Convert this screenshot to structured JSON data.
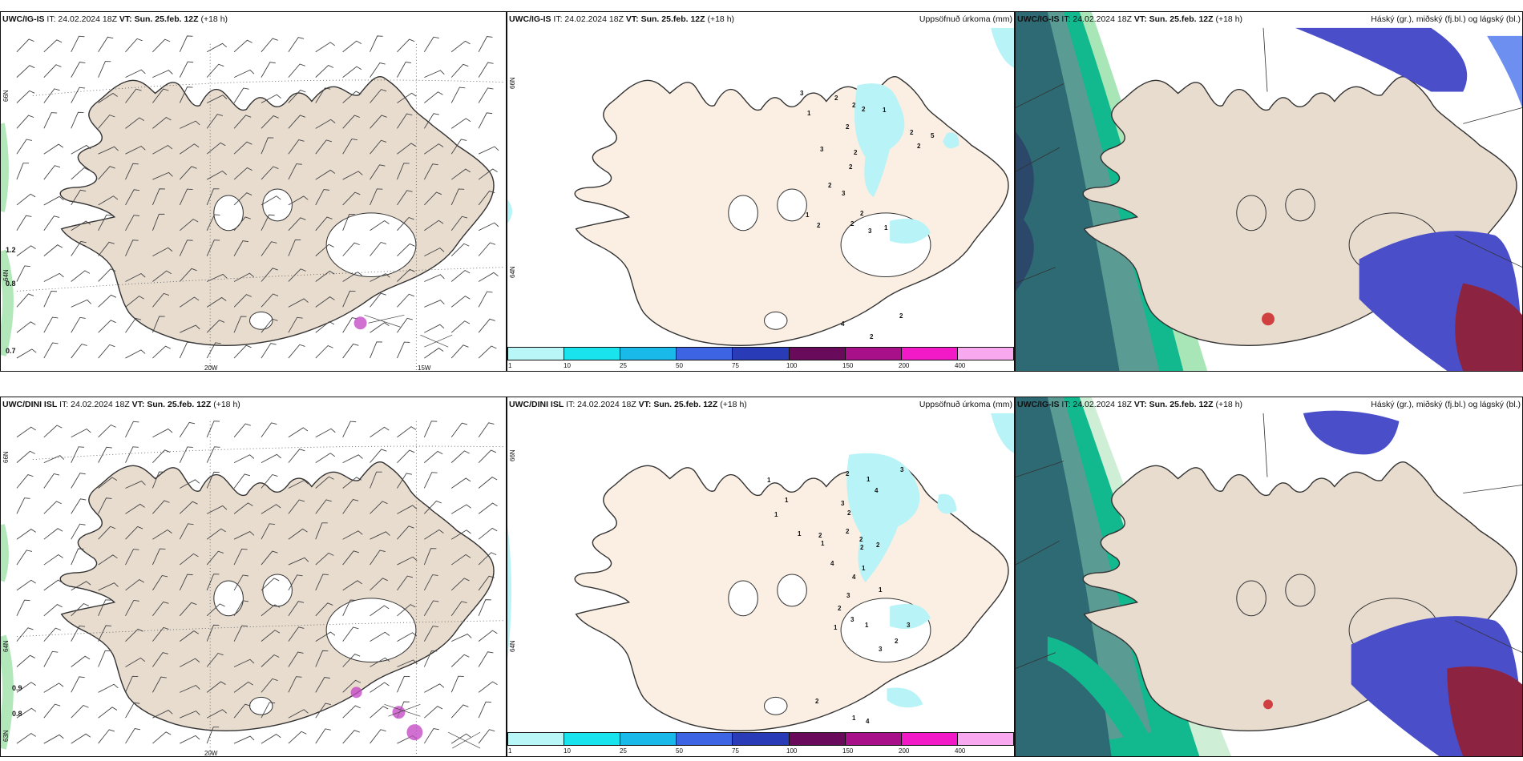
{
  "colors": {
    "land": "#e8dccf",
    "land_precip": "#fbefe3",
    "coast": "#333333",
    "precip_light": "#b7f3f7",
    "high_cloud": "#4a4fc9",
    "mid_cloud": "#12b98e",
    "low_cloud": "#2d6a73"
  },
  "rows": [
    {
      "wind": {
        "model": "UWC/IG-IS",
        "it": "IT: 24.02.2024 18Z",
        "vt_label": "VT:",
        "vt": "Sun. 25.feb. 12Z",
        "lead": "(+18 h)",
        "lat_labels": [
          "66N",
          "64N"
        ],
        "lon_labels": [
          "20W",
          "15W"
        ],
        "contour_labels": [
          "1.2",
          "0.8",
          "0.7"
        ]
      },
      "precip": {
        "model": "UWC/IG-IS",
        "it": "IT: 24.02.2024 18Z",
        "vt_label": "VT:",
        "vt": "Sun. 25.feb. 12Z",
        "lead": "(+18 h)",
        "title": "Uppsöfnuð úrkoma (mm)",
        "lat_labels": [
          "66N",
          "64N"
        ],
        "values": [
          "3",
          "2",
          "2",
          "1",
          "2",
          "2",
          "1",
          "2",
          "5",
          "2",
          "2",
          "3",
          "2",
          "2",
          "3",
          "1",
          "2",
          "2",
          "2",
          "3",
          "1",
          "2",
          "4",
          "2",
          "2"
        ]
      },
      "cloud": {
        "model": "UWC/IG-IS",
        "it": "IT: 24.02.2024 18Z",
        "vt_label": "VT:",
        "vt": "Sun. 25.feb. 12Z",
        "lead": "(+18 h)",
        "title": "Háský (gr.), miðský (fj.bl.) og lágský (bl.)"
      }
    },
    {
      "wind": {
        "model": "UWC/DINI ISL",
        "it": "IT: 24.02.2024 18Z",
        "vt_label": "VT:",
        "vt": "Sun. 25.feb. 12Z",
        "lead": "(+18 h)",
        "lat_labels": [
          "66N",
          "64N",
          "63N"
        ],
        "lon_labels": [
          "20W"
        ],
        "contour_labels": [
          "0.9",
          "0.8"
        ]
      },
      "precip": {
        "model": "UWC/DINI ISL",
        "it": "IT: 24.02.2024 18Z",
        "vt_label": "VT:",
        "vt": "Sun. 25.feb. 12Z",
        "lead": "(+18 h)",
        "title": "Uppsöfnuð úrkoma (mm)",
        "lat_labels": [
          "66N",
          "64N"
        ],
        "values": [
          "3",
          "2",
          "1",
          "4",
          "3",
          "2",
          "2",
          "2",
          "2",
          "1",
          "1",
          "1",
          "1",
          "1",
          "2",
          "2",
          "4",
          "4",
          "3",
          "2",
          "3",
          "1",
          "1",
          "3",
          "2",
          "3",
          "1",
          "1",
          "2",
          "1",
          "4"
        ]
      },
      "cloud": {
        "model": "UWC/IG-IS",
        "it": "IT: 24.02.2024 18Z",
        "vt_label": "VT:",
        "vt": "Sun. 25.feb. 12Z",
        "lead": "(+18 h)",
        "title": "Háský (gr.), miðský (fj.bl.) og lágský (bl.)"
      }
    }
  ],
  "colorbar": {
    "colors": [
      "#b8f6f8",
      "#19e3ec",
      "#19b9ea",
      "#3c64e3",
      "#2a3bb8",
      "#6a0a5a",
      "#a8108a",
      "#f21ac6",
      "#f7a8ee"
    ],
    "ticks": [
      "1",
      "10",
      "25",
      "50",
      "75",
      "100",
      "150",
      "200",
      "400"
    ]
  }
}
